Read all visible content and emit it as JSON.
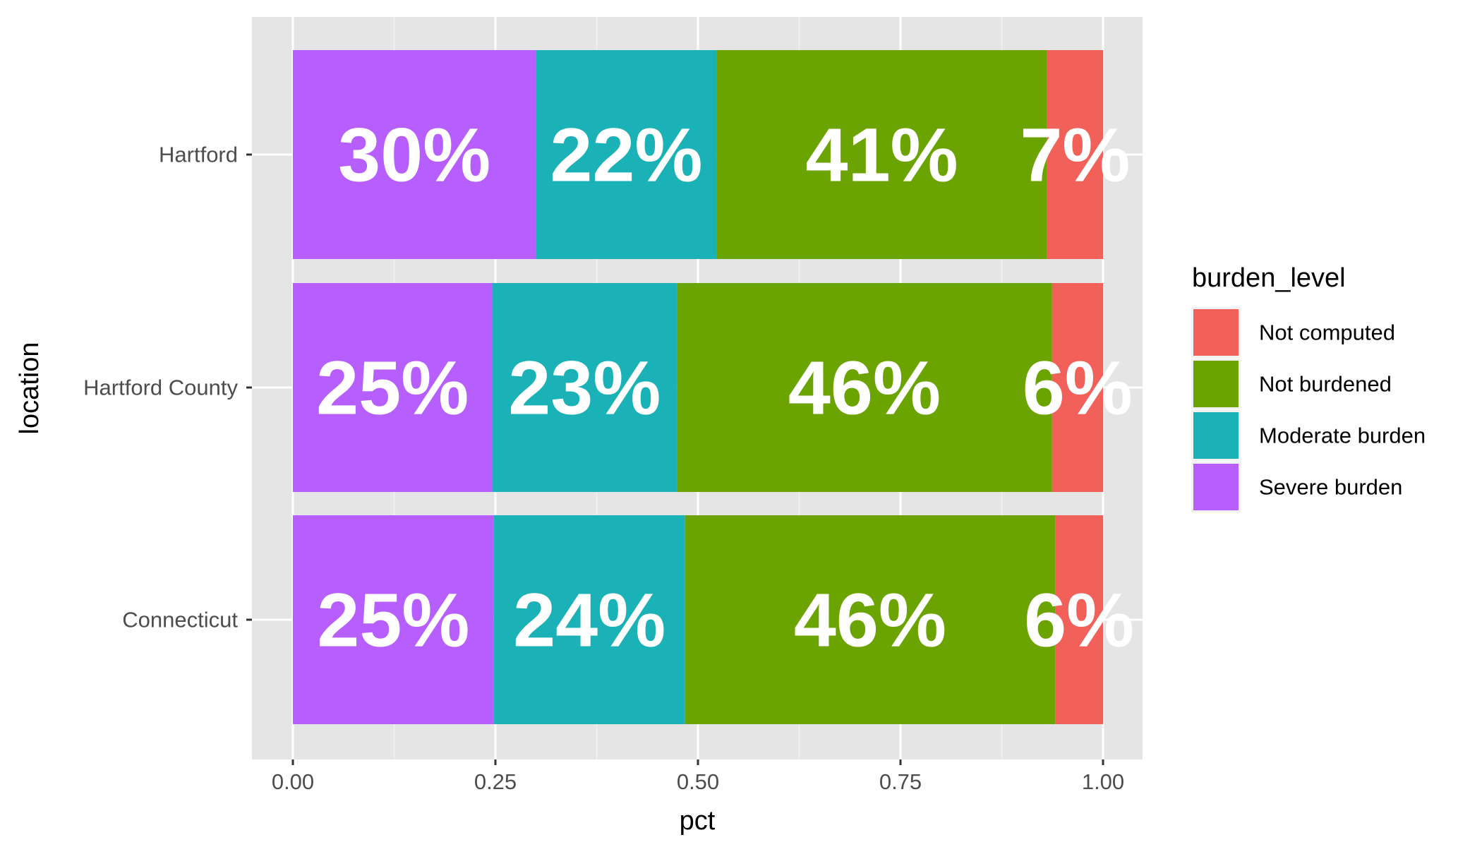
{
  "chart_data": {
    "type": "bar",
    "orientation": "horizontal",
    "stacked": true,
    "xlabel": "pct",
    "ylabel": "location",
    "xlim": [
      0,
      1
    ],
    "x_ticks": [
      "0.00",
      "0.25",
      "0.50",
      "0.75",
      "1.00"
    ],
    "categories": [
      "Hartford",
      "Hartford County",
      "Connecticut"
    ],
    "series": [
      {
        "name": "Severe burden",
        "color": "#B75EFF",
        "values": [
          0.3,
          0.246,
          0.248
        ],
        "labels": [
          "30%",
          "25%",
          "25%"
        ]
      },
      {
        "name": "Moderate burden",
        "color": "#1AB2B6",
        "values": [
          0.223,
          0.228,
          0.236
        ],
        "labels": [
          "22%",
          "23%",
          "24%"
        ]
      },
      {
        "name": "Not burdened",
        "color": "#6BA300",
        "values": [
          0.408,
          0.463,
          0.457
        ],
        "labels": [
          "41%",
          "46%",
          "46%"
        ]
      },
      {
        "name": "Not computed",
        "color": "#F2605A",
        "values": [
          0.069,
          0.063,
          0.059
        ],
        "labels": [
          "7%",
          "6%",
          "6%"
        ]
      }
    ],
    "legend": {
      "title": "burden_level",
      "position": "right",
      "order": [
        "Not computed",
        "Not burdened",
        "Moderate burden",
        "Severe burden"
      ]
    },
    "panel_background": "#E5E5E5",
    "grid": true
  }
}
